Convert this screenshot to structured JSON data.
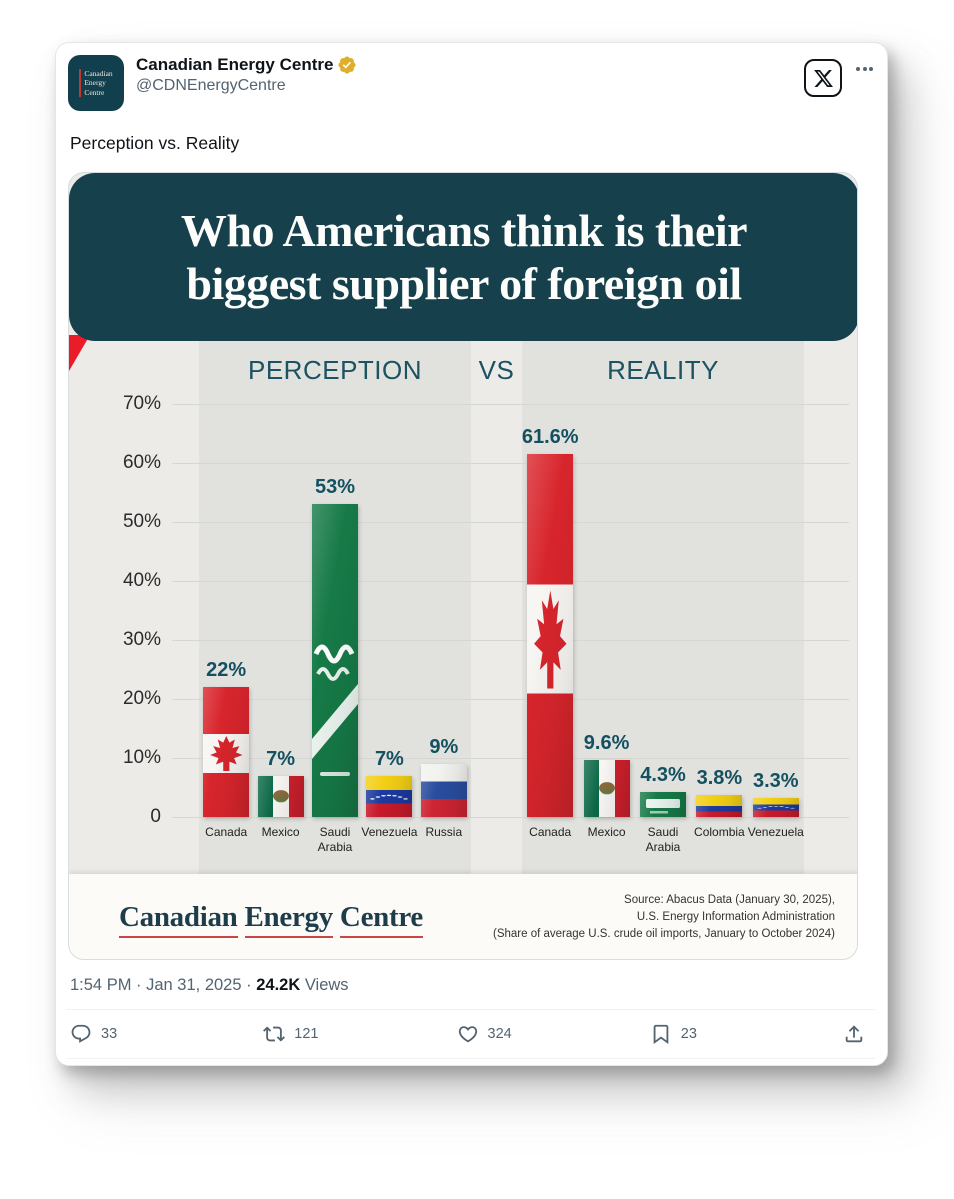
{
  "tweet": {
    "author": {
      "name": "Canadian Energy Centre",
      "handle": "@CDNEnergyCentre",
      "avatar_lines": [
        "Canadian",
        "Energy",
        "Centre"
      ],
      "verified_color": "#dfaf2c"
    },
    "text": "Perception vs. Reality",
    "meta": {
      "time": "1:54 PM",
      "sep1": " · ",
      "date": "Jan 31, 2025",
      "sep2": " · ",
      "views_count": "24.2K",
      "views_label": " Views"
    },
    "actions": {
      "reply": "33",
      "repost": "121",
      "like": "324",
      "bookmark": "23"
    }
  },
  "infographic": {
    "title_line1": "Who Americans think is their",
    "title_line2": "biggest supplier of foreign oil",
    "footer": {
      "logo_words": [
        "Canadian",
        "Energy",
        "Centre"
      ],
      "source_lines": [
        "Source: Abacus Data (January 30, 2025),",
        "U.S. Energy Information Administration",
        "(Share of average U.S. crude oil imports, January to October 2024)"
      ]
    },
    "colors": {
      "banner_teal": "#17404d",
      "label_teal": "#14505f",
      "ribbon_red": "#ea1c2a",
      "bg_light": "#ecebe8",
      "panel_gray": "#e1e1de"
    }
  },
  "chart_data": {
    "type": "bar",
    "title": "Who Americans think is their biggest supplier of foreign oil",
    "vs_label": "VS",
    "ylim": [
      0,
      70
    ],
    "yticks": [
      "70%",
      "60%",
      "50%",
      "40%",
      "30%",
      "20%",
      "10%",
      "0"
    ],
    "grid": true,
    "panels": [
      {
        "label": "PERCEPTION",
        "categories": [
          "Canada",
          "Mexico",
          "Saudi Arabia",
          "Venezuela",
          "Russia"
        ],
        "values": [
          22,
          7,
          53,
          7,
          9
        ],
        "value_labels": [
          "22%",
          "7%",
          "53%",
          "7%",
          "9%"
        ],
        "flag_keys": [
          "canada",
          "mexico",
          "saudi",
          "venezuela",
          "russia"
        ]
      },
      {
        "label": "REALITY",
        "categories": [
          "Canada",
          "Mexico",
          "Saudi Arabia",
          "Colombia",
          "Venezuela"
        ],
        "values": [
          61.6,
          9.6,
          4.3,
          3.8,
          3.3
        ],
        "value_labels": [
          "61.6%",
          "9.6%",
          "4.3%",
          "3.8%",
          "3.3%"
        ],
        "flag_keys": [
          "canada",
          "mexico",
          "saudi",
          "colombia",
          "venezuela"
        ]
      }
    ]
  }
}
